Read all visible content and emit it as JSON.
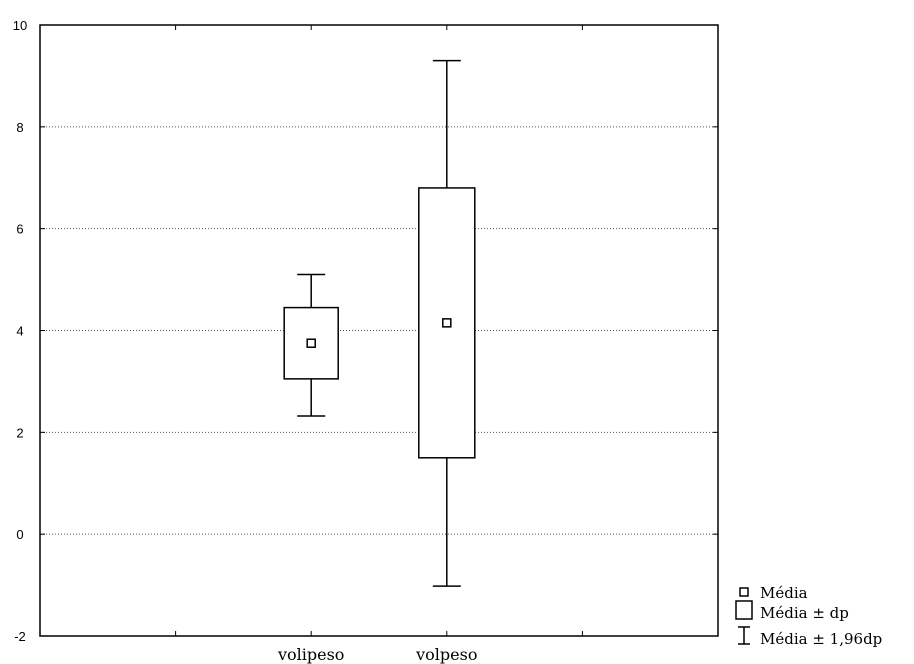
{
  "chart_data": {
    "type": "box",
    "categories": [
      "volipeso",
      "volpeso"
    ],
    "series": [
      {
        "category": "volipeso",
        "mean": 3.75,
        "lower_sd": 3.05,
        "upper_sd": 4.45,
        "lower_196sd": 2.32,
        "upper_196sd": 5.1
      },
      {
        "category": "volpeso",
        "mean": 4.15,
        "lower_sd": 1.5,
        "upper_sd": 6.8,
        "lower_196sd": -1.02,
        "upper_196sd": 9.3
      }
    ],
    "y_ticks": [
      -2,
      0,
      2,
      4,
      6,
      8,
      10
    ],
    "ylim": [
      -2,
      10
    ],
    "grid": "horizontal dotted",
    "legend_position": "bottom-right",
    "legend": [
      {
        "symbol": "mean-marker",
        "label": "Média"
      },
      {
        "symbol": "box",
        "label": "Média ± dp"
      },
      {
        "symbol": "whisker",
        "label": "Média ± 1,96dp"
      }
    ]
  }
}
